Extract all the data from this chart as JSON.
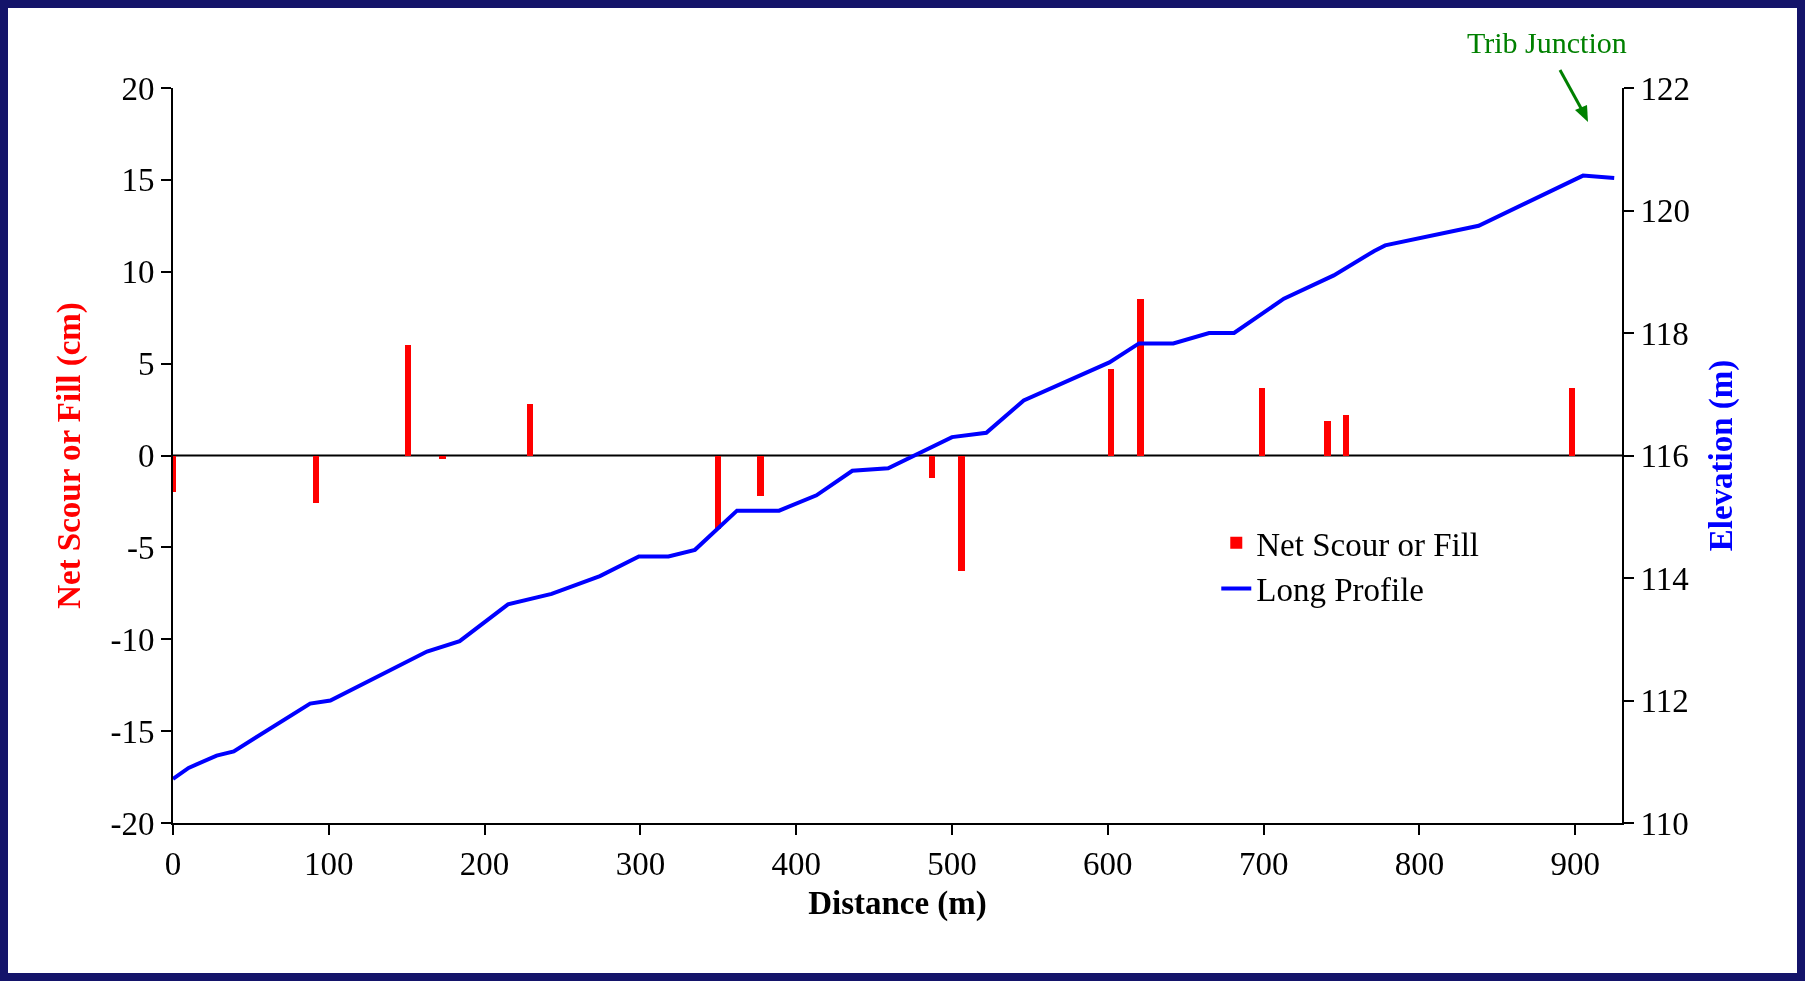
{
  "chart_data": {
    "type": "bar",
    "xlabel": "Distance (m)",
    "ylabel": "Net Scour or Fill (cm)",
    "y2label": "Elevation (m)",
    "xlim": [
      0,
      930
    ],
    "xticks": [
      0,
      100,
      200,
      300,
      400,
      500,
      600,
      700,
      800,
      900
    ],
    "ylim": [
      -20,
      20
    ],
    "yticks": [
      -20,
      -15,
      -10,
      -5,
      0,
      5,
      10,
      15,
      20
    ],
    "y2lim": [
      110,
      122
    ],
    "y2ticks": [
      110,
      112,
      114,
      116,
      118,
      120,
      122
    ],
    "grid": false,
    "legend": "right",
    "annotations": [
      "Trib Junction"
    ],
    "ref_lines": [
      {
        "axis": "y",
        "value": 0,
        "color": "#000000"
      }
    ],
    "series": [
      {
        "name": "Net Scour or Fill",
        "color": "#ff0000",
        "x": [
          0,
          92,
          151,
          173,
          229,
          350,
          377,
          487,
          506,
          602,
          621,
          699,
          741,
          753,
          898
        ],
        "values": [
          -2,
          -2.6,
          6,
          -0.2,
          2.8,
          -4,
          -2.2,
          -1.2,
          -6.3,
          4.7,
          8.5,
          3.7,
          1.9,
          2.2,
          3.7
        ]
      },
      {
        "name": "Long Profile",
        "type": "line",
        "axis": "y2",
        "color": "#0000ff",
        "marker": "none",
        "line_style": "solid",
        "x": [
          0,
          10,
          28,
          39,
          88,
          101,
          163,
          184,
          215,
          243,
          274,
          299,
          318,
          335,
          362,
          389,
          413,
          436,
          459,
          500,
          522,
          546,
          601,
          620,
          642,
          665,
          681,
          713,
          745,
          771,
          778,
          838,
          905,
          925
        ],
        "values": [
          110.72,
          110.9,
          111.1,
          111.17,
          111.95,
          112.0,
          112.8,
          112.97,
          113.57,
          113.74,
          114.03,
          114.35,
          114.35,
          114.46,
          115.1,
          115.1,
          115.35,
          115.75,
          115.79,
          116.3,
          116.37,
          116.9,
          117.52,
          117.83,
          117.83,
          118.0,
          118.0,
          118.56,
          118.94,
          119.34,
          119.43,
          119.75,
          120.57,
          120.53
        ]
      }
    ]
  }
}
